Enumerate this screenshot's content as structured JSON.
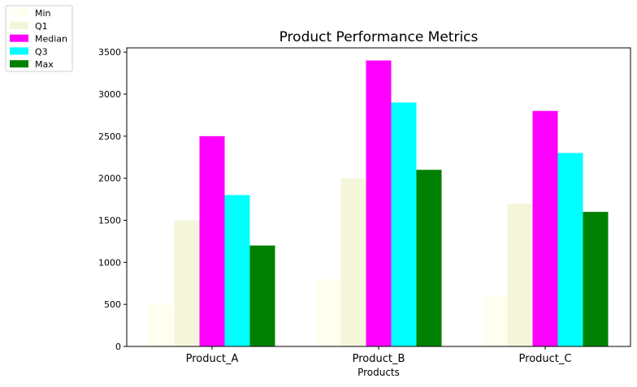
{
  "chart_data": {
    "type": "bar",
    "title": "Product Performance Metrics",
    "xlabel": "Products",
    "ylabel": "",
    "categories": [
      "Product_A",
      "Product_B",
      "Product_C"
    ],
    "ylim": [
      0,
      3550
    ],
    "yticks": [
      0,
      500,
      1000,
      1500,
      2000,
      2500,
      3000,
      3500
    ],
    "grid": false,
    "legend_position": "outside-top-left",
    "series": [
      {
        "name": "Min",
        "color": "#fffff0",
        "values": [
          500,
          800,
          600
        ]
      },
      {
        "name": "Q1",
        "color": "#f5f5dc",
        "values": [
          1500,
          2000,
          1700
        ]
      },
      {
        "name": "Median",
        "color": "#ff00ff",
        "values": [
          2500,
          3400,
          2800
        ]
      },
      {
        "name": "Q3",
        "color": "#00ffff",
        "values": [
          1800,
          2900,
          2300
        ]
      },
      {
        "name": "Max",
        "color": "#008000",
        "values": [
          1200,
          2100,
          1600
        ]
      }
    ]
  }
}
